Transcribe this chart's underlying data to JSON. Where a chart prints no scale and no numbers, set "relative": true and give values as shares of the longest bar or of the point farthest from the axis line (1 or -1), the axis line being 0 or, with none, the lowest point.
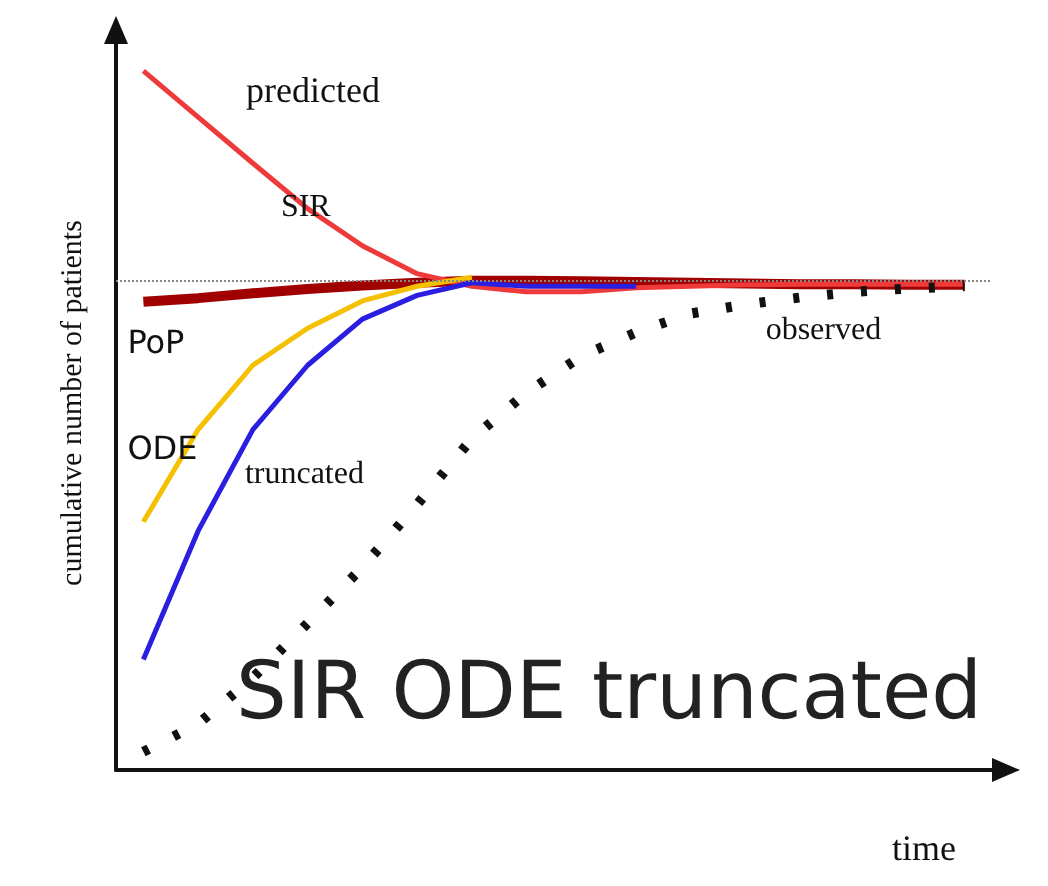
{
  "chart_data": {
    "type": "line",
    "xlabel": "time",
    "ylabel": "cumulative number of patients",
    "relative": true,
    "categories": [
      null,
      null,
      null,
      null,
      null,
      null,
      null,
      null,
      null,
      null,
      null,
      null,
      null,
      null,
      null,
      null
    ],
    "series": [
      {
        "name": "SIR",
        "color": "#ee3a3a",
        "values": [
          1.0,
          0.934,
          0.868,
          0.803,
          0.75,
          0.71,
          0.692,
          0.684,
          0.684,
          0.69,
          0.692,
          0.694,
          0.695,
          0.695,
          0.695,
          0.695
        ]
      },
      {
        "name": "ODE",
        "color": "#f5c000",
        "values": [
          0.355,
          0.487,
          0.579,
          0.632,
          0.671,
          0.692,
          0.705,
          null,
          null,
          null,
          null,
          null,
          null,
          null,
          null,
          null
        ]
      },
      {
        "name": "truncated",
        "color": "#2a1ee0",
        "values": [
          0.158,
          0.342,
          0.487,
          0.579,
          0.645,
          0.679,
          0.697,
          0.692,
          0.692,
          0.692,
          null,
          null,
          null,
          null,
          null,
          null
        ]
      },
      {
        "name": "PoP",
        "color": "#a00000",
        "values": [
          0.67,
          0.675,
          0.682,
          0.688,
          0.693,
          0.697,
          0.7,
          0.7,
          0.699,
          0.698,
          0.697,
          0.696,
          0.695,
          0.695,
          0.694,
          0.694
        ]
      },
      {
        "name": "observed",
        "color": "#111111",
        "line_style": "dotted",
        "values": [
          0.026,
          0.066,
          0.132,
          0.21,
          0.29,
          0.38,
          0.474,
          0.54,
          0.592,
          0.626,
          0.653,
          0.666,
          0.676,
          0.684,
          0.689,
          0.692
        ]
      }
    ],
    "ref_lines": [
      {
        "axis": "y",
        "value": 0.697,
        "color": "#888888",
        "line_style": "dotted"
      }
    ],
    "annotations": [
      "predicted",
      "SIR ODE truncated"
    ],
    "grid": false,
    "legend": false
  }
}
